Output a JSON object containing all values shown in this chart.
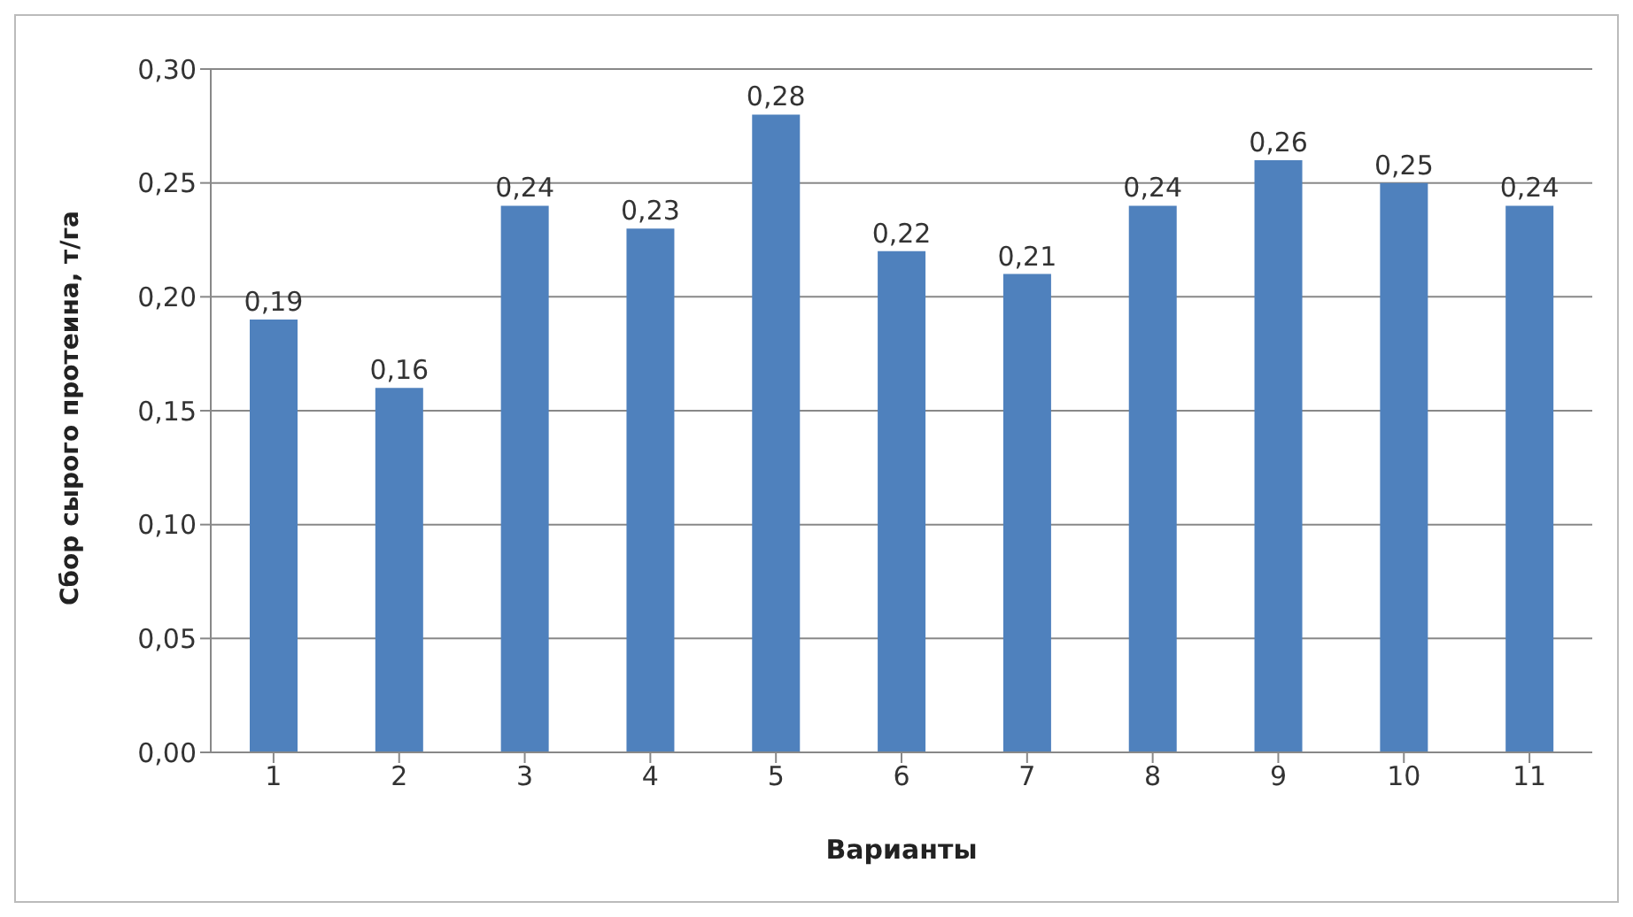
{
  "chart_data": {
    "type": "bar",
    "xlabel": "Варианты",
    "ylabel": "Сбор сырого протеина, т/га",
    "categories": [
      "1",
      "2",
      "3",
      "4",
      "5",
      "6",
      "7",
      "8",
      "9",
      "10",
      "11"
    ],
    "values": [
      0.19,
      0.16,
      0.24,
      0.23,
      0.28,
      0.22,
      0.21,
      0.24,
      0.26,
      0.25,
      0.24
    ],
    "value_labels": [
      "0,19",
      "0,16",
      "0,24",
      "0,23",
      "0,28",
      "0,22",
      "0,21",
      "0,24",
      "0,26",
      "0,25",
      "0,24"
    ],
    "color": "#4f81bd",
    "ylim": [
      0,
      0.3
    ],
    "yticks": [
      {
        "value": 0,
        "label": "0,00"
      },
      {
        "value": 0.05,
        "label": "0,05"
      },
      {
        "value": 0.1,
        "label": "0,10"
      },
      {
        "value": 0.15,
        "label": "0,15"
      },
      {
        "value": 0.2,
        "label": "0,20"
      },
      {
        "value": 0.25,
        "label": "0,25"
      },
      {
        "value": 0.3,
        "label": "0,30"
      }
    ],
    "grid": "y",
    "legend": false
  }
}
